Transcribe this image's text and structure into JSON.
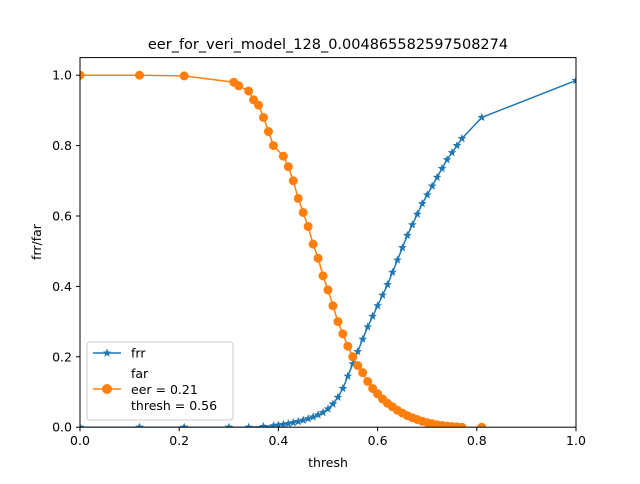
{
  "chart_data": {
    "type": "line",
    "title": "eer_for_veri_model_128_0.004865582597508274",
    "xlabel": "thresh",
    "ylabel": "frr/far",
    "xlim": [
      0.0,
      1.0
    ],
    "ylim": [
      0.0,
      1.05
    ],
    "x_ticks": [
      "0.0",
      "0.2",
      "0.4",
      "0.6",
      "0.8",
      "1.0"
    ],
    "x_tick_values": [
      0.0,
      0.2,
      0.4,
      0.6,
      0.8,
      1.0
    ],
    "y_ticks": [
      "0.0",
      "0.2",
      "0.4",
      "0.6",
      "0.8",
      "1.0"
    ],
    "y_tick_values": [
      0.0,
      0.2,
      0.4,
      0.6,
      0.8,
      1.0
    ],
    "grid": false,
    "legend_position": "lower-left",
    "legend": {
      "frr_label": "frr",
      "far_label": "far",
      "eer_text": "eer = 0.21",
      "thresh_text": "thresh = 0.56"
    },
    "series": [
      {
        "name": "frr",
        "color": "#1f77b4",
        "marker": "star",
        "x": [
          0.0,
          0.12,
          0.21,
          0.3,
          0.34,
          0.37,
          0.39,
          0.4,
          0.41,
          0.42,
          0.43,
          0.44,
          0.45,
          0.46,
          0.47,
          0.48,
          0.49,
          0.5,
          0.51,
          0.52,
          0.53,
          0.54,
          0.55,
          0.56,
          0.57,
          0.58,
          0.59,
          0.6,
          0.61,
          0.62,
          0.63,
          0.64,
          0.65,
          0.66,
          0.67,
          0.68,
          0.69,
          0.7,
          0.71,
          0.72,
          0.73,
          0.74,
          0.75,
          0.76,
          0.77,
          0.81,
          1.0
        ],
        "y": [
          0.0,
          0.0,
          0.0,
          0.0,
          0.0,
          0.002,
          0.004,
          0.006,
          0.008,
          0.01,
          0.013,
          0.016,
          0.02,
          0.024,
          0.029,
          0.035,
          0.042,
          0.052,
          0.066,
          0.085,
          0.11,
          0.145,
          0.18,
          0.215,
          0.25,
          0.285,
          0.315,
          0.345,
          0.375,
          0.405,
          0.44,
          0.475,
          0.51,
          0.545,
          0.575,
          0.605,
          0.635,
          0.66,
          0.685,
          0.71,
          0.735,
          0.76,
          0.78,
          0.8,
          0.82,
          0.88,
          0.985
        ]
      },
      {
        "name": "far",
        "color": "#ff7f0e",
        "marker": "circle",
        "x": [
          0.0,
          0.12,
          0.21,
          0.31,
          0.32,
          0.34,
          0.35,
          0.36,
          0.37,
          0.38,
          0.39,
          0.41,
          0.42,
          0.43,
          0.44,
          0.45,
          0.46,
          0.47,
          0.48,
          0.49,
          0.5,
          0.51,
          0.52,
          0.53,
          0.54,
          0.55,
          0.56,
          0.57,
          0.58,
          0.59,
          0.6,
          0.61,
          0.62,
          0.63,
          0.64,
          0.65,
          0.66,
          0.67,
          0.68,
          0.69,
          0.7,
          0.71,
          0.72,
          0.73,
          0.74,
          0.75,
          0.76,
          0.77,
          0.81
        ],
        "y": [
          1.0,
          1.0,
          0.998,
          0.98,
          0.97,
          0.955,
          0.93,
          0.915,
          0.88,
          0.84,
          0.8,
          0.77,
          0.74,
          0.7,
          0.65,
          0.61,
          0.57,
          0.52,
          0.48,
          0.43,
          0.39,
          0.345,
          0.3,
          0.265,
          0.23,
          0.2,
          0.175,
          0.155,
          0.13,
          0.11,
          0.095,
          0.08,
          0.068,
          0.058,
          0.048,
          0.04,
          0.033,
          0.027,
          0.022,
          0.017,
          0.013,
          0.01,
          0.007,
          0.005,
          0.003,
          0.002,
          0.001,
          0.0,
          0.0
        ]
      }
    ]
  }
}
